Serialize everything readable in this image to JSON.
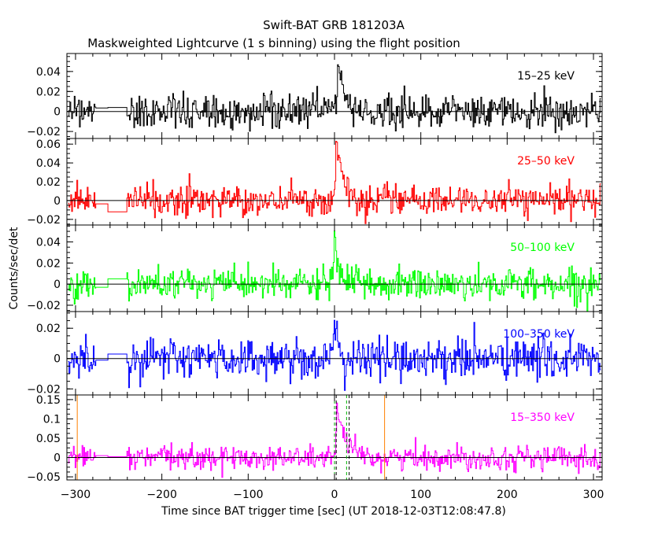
{
  "chart_data": {
    "type": "line",
    "title": "Swift-BAT GRB 181203A",
    "subtitle": "Maskweighted Lightcurve (1 s binning) using the flight position",
    "xlabel": "Time since BAT trigger time [sec] (UT 2018-12-03T12:08:47.8)",
    "ylabel": "Counts/sec/det",
    "xlim": [
      -310,
      310
    ],
    "x_ticks": [
      -300,
      -200,
      -100,
      0,
      100,
      200,
      300
    ],
    "data_gap": [
      -277,
      -240
    ],
    "grid": false,
    "panels": [
      {
        "name": "15-25 keV",
        "label": "15–25 keV",
        "color": "#000000",
        "ylim": [
          -0.027,
          0.058
        ],
        "yticks": [
          -0.02,
          0,
          0.02,
          0.04
        ],
        "ytick_labels": [
          "−0.02",
          "0",
          "0.02",
          "0.04"
        ],
        "noise_sigma": 0.0085,
        "pre_gap_level": 0.0035,
        "gap_level": 0.004,
        "peak": 0.05,
        "peak_time": 4,
        "decay_time": 6
      },
      {
        "name": "25-50 keV",
        "label": "25–50 keV",
        "color": "#ff0000",
        "ylim": [
          -0.026,
          0.066
        ],
        "yticks": [
          -0.02,
          0,
          0.02,
          0.04,
          0.06
        ],
        "ytick_labels": [
          "−0.02",
          "0",
          "0.02",
          "0.04",
          "0.06"
        ],
        "noise_sigma": 0.0075,
        "pre_gap_level": -0.0035,
        "gap_level": -0.012,
        "peak": 0.06,
        "peak_time": 2,
        "decay_time": 7
      },
      {
        "name": "50-100 keV",
        "label": "50–100 keV",
        "color": "#00ff00",
        "ylim": [
          -0.026,
          0.056
        ],
        "yticks": [
          -0.02,
          0,
          0.02,
          0.04
        ],
        "ytick_labels": [
          "−0.02",
          "0",
          "0.02",
          "0.04"
        ],
        "noise_sigma": 0.0075,
        "pre_gap_level": -0.003,
        "gap_level": 0.005,
        "peak": 0.045,
        "peak_time": 0,
        "decay_time": 5
      },
      {
        "name": "100-350 keV",
        "label": "100–350 keV",
        "color": "#0000ff",
        "ylim": [
          -0.024,
          0.031
        ],
        "yticks": [
          -0.02,
          0,
          0.02
        ],
        "ytick_labels": [
          "−0.02",
          "0",
          "0.02"
        ],
        "noise_sigma": 0.0068,
        "pre_gap_level": -0.001,
        "gap_level": 0.003,
        "peak": 0.018,
        "peak_time": 0,
        "decay_time": 4
      },
      {
        "name": "15-350 keV",
        "label": "15–350 keV",
        "color": "#ff00ff",
        "ylim": [
          -0.058,
          0.162
        ],
        "yticks": [
          -0.05,
          0,
          0.05,
          0.1,
          0.15
        ],
        "ytick_labels": [
          "−0.05",
          "0",
          "0.05",
          "0.1",
          "0.15"
        ],
        "noise_sigma": 0.0155,
        "pre_gap_level": 0.005,
        "gap_level": 0.002,
        "peak": 0.14,
        "peak_time": 3,
        "decay_time": 8
      }
    ],
    "vertical_lines": [
      {
        "kind": "solid",
        "color": "#ff8000",
        "x": -298
      },
      {
        "kind": "solid",
        "color": "#ff8000",
        "x": 58
      },
      {
        "kind": "dashed",
        "color": "#00b000",
        "x": 0
      },
      {
        "kind": "dashed",
        "color": "#00b000",
        "x": 14
      },
      {
        "kind": "dashed",
        "color": "#000000",
        "x": 2
      },
      {
        "kind": "dashed",
        "color": "#000000",
        "x": 17
      }
    ]
  }
}
